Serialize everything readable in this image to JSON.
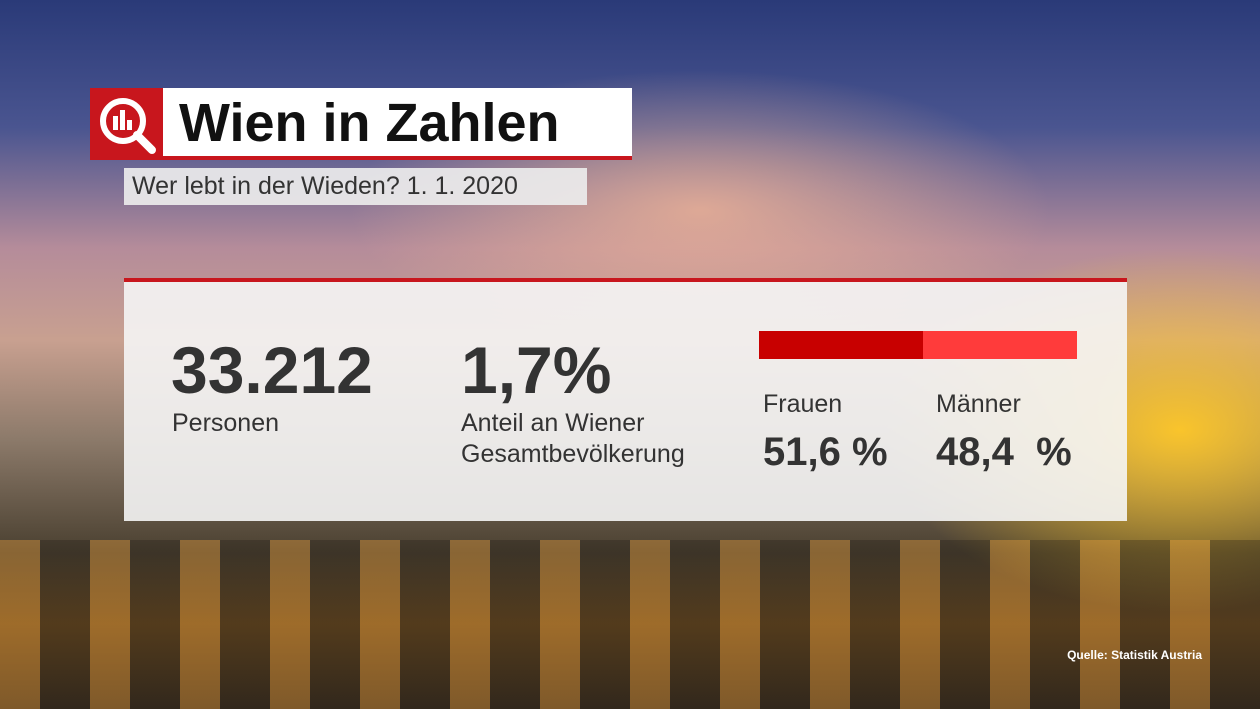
{
  "header": {
    "title": "Wien in Zahlen",
    "subtitle": "Wer lebt in der Wieden? 1. 1. 2020"
  },
  "stats": [
    {
      "value": "33.212",
      "label": "Personen"
    },
    {
      "value": "1,7%",
      "label": "Anteil an Wiener Gesamtbevölkerung"
    }
  ],
  "gender_split": {
    "segments": [
      {
        "name": "Frauen",
        "value": 51.6,
        "value_label": "51,6 %",
        "color": "#c80000"
      },
      {
        "name": "Männer",
        "value": 48.4,
        "value_label": "48,4  %",
        "color": "#ff3b3b"
      }
    ]
  },
  "source": "Quelle: Statistik Austria"
}
